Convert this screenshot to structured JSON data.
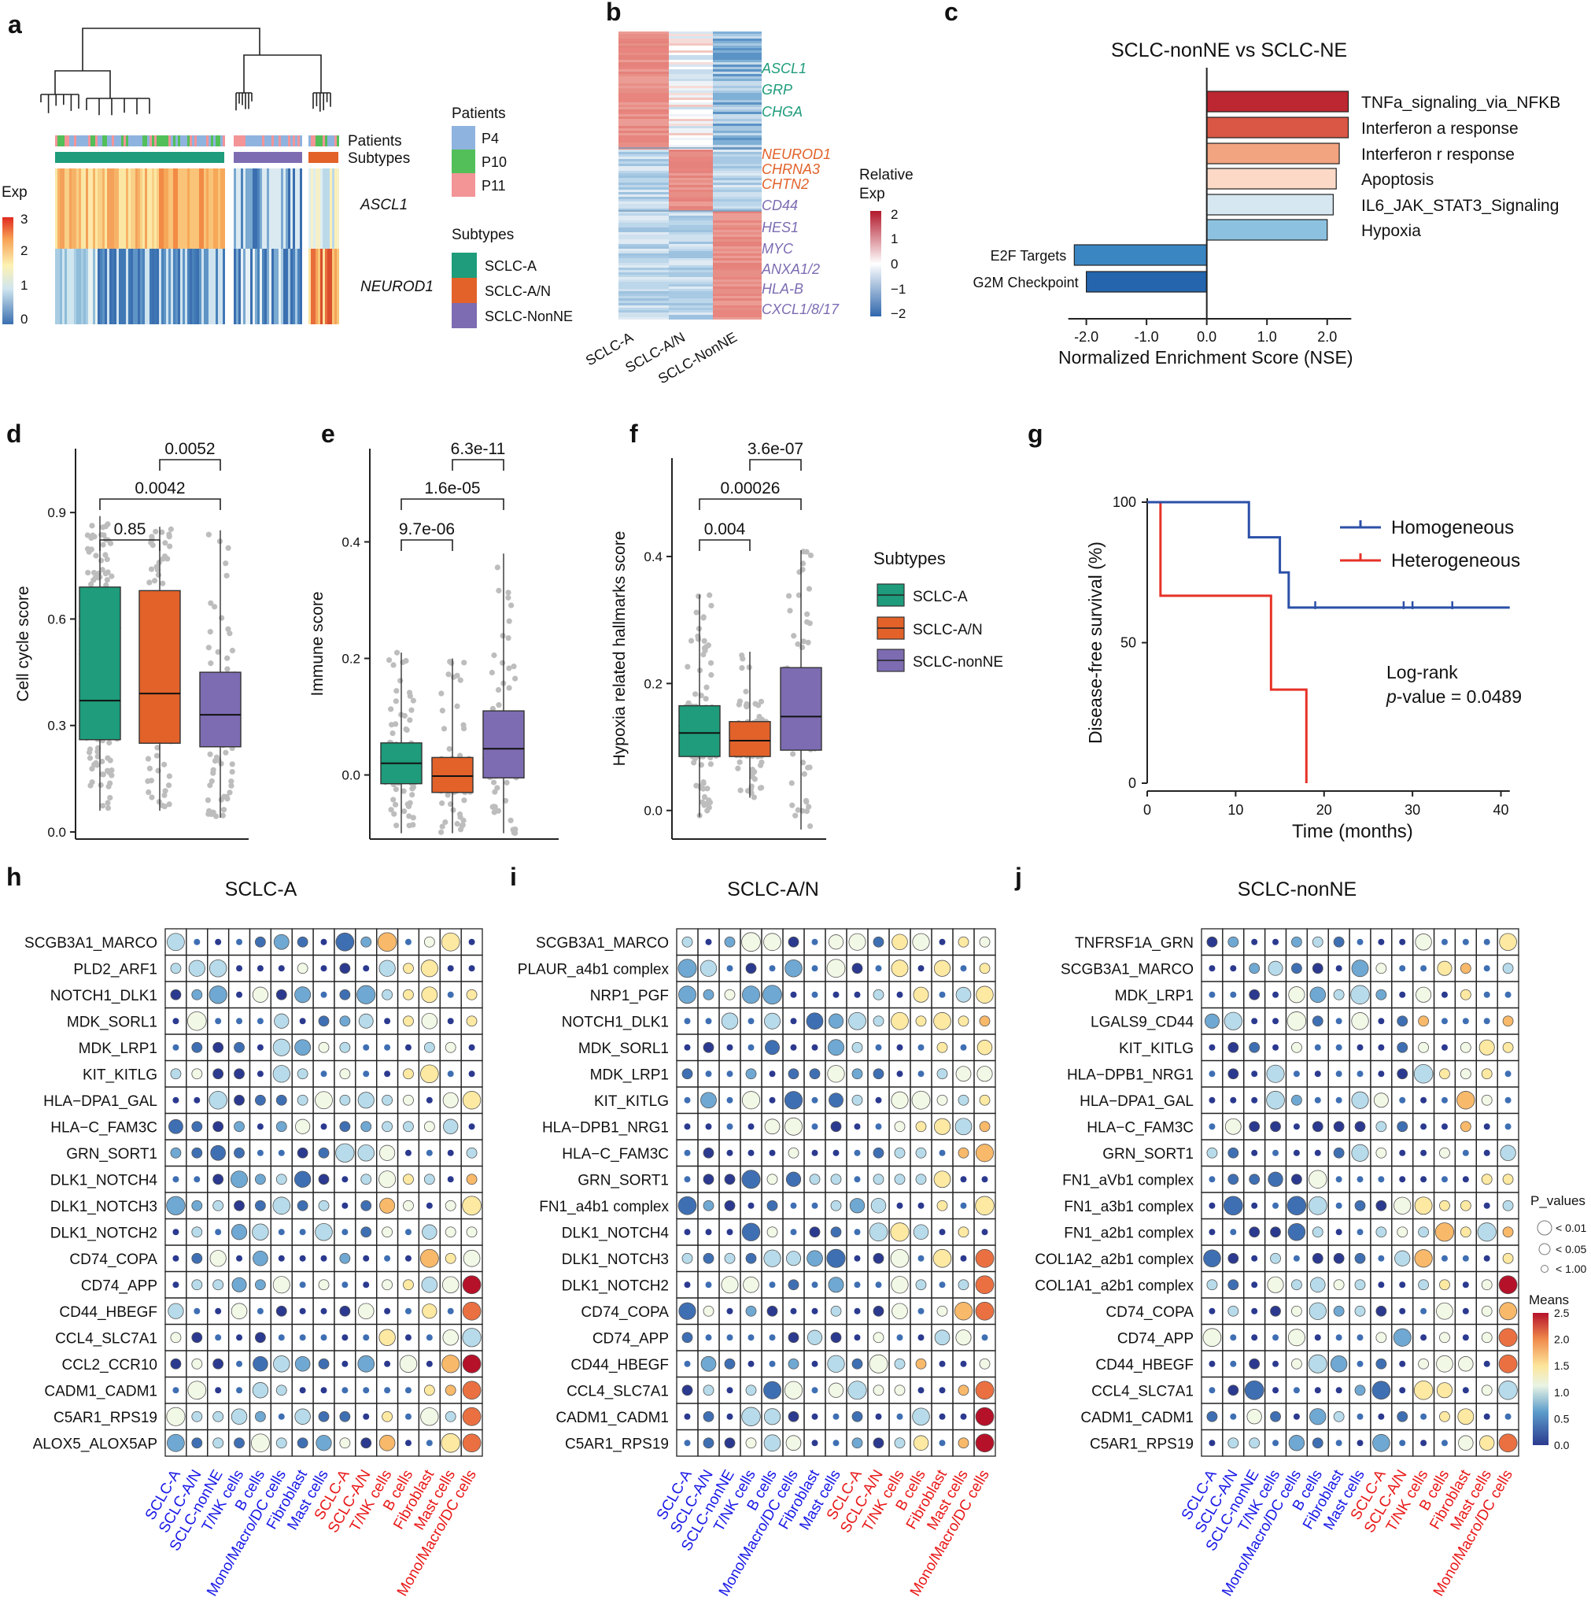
{
  "panel_labels": [
    "a",
    "b",
    "c",
    "d",
    "e",
    "f",
    "g",
    "h",
    "i",
    "j"
  ],
  "colors": {
    "SCLC-A": "#1e9c7b",
    "SCLC-A/N": "#e2622a",
    "SCLC-nonNE": "#7d6cb2",
    "P4": "#8fb3df",
    "P10": "#52bf58",
    "P11": "#f39497",
    "homogeneous": "#2c50a8",
    "heterogeneous": "#e63227"
  },
  "panel_a": {
    "legend_patients_title": "Patients",
    "patients": [
      "P4",
      "P10",
      "P11"
    ],
    "legend_subtypes_title": "Subtypes",
    "subtypes": [
      "SCLC-A",
      "SCLC-A/N",
      "SCLC-NonNE"
    ],
    "row_labels": [
      "Patients",
      "Subtypes"
    ],
    "genes": [
      "ASCL1",
      "NEUROD1"
    ],
    "scale_title": "Exp",
    "scale_ticks": [
      "3",
      "2",
      "1",
      "0"
    ]
  },
  "panel_b": {
    "columns": [
      "SCLC-A",
      "SCLC-A/N",
      "SCLC-NonNE"
    ],
    "genes_A": [
      "ASCL1",
      "GRP",
      "CHGA"
    ],
    "genes_AN": [
      "NEUROD1",
      "CHRNA3",
      "CHTN2"
    ],
    "genes_nonNE": [
      "CD44",
      "HES1",
      "MYC",
      "ANXA1/2",
      "HLA-B",
      "CXCL1/8/17"
    ],
    "scale_title_1": "Relative",
    "scale_title_2": "Exp",
    "scale_ticks": [
      "2",
      "1",
      "0",
      "−1",
      "−2"
    ]
  },
  "chart_data": [
    {
      "panel": "c",
      "type": "bar",
      "orientation": "horizontal",
      "title": "SCLC-nonNE vs SCLC-NE",
      "xlabel": "Normalized Enrichment Score (NSE)",
      "xlim": [
        -2.4,
        2.5
      ],
      "xticks": [
        "-2.0",
        "-1.0",
        "0.0",
        "1.0",
        "2.0"
      ],
      "categories": [
        "TNFa_signaling_via_NFKB",
        "Interferon a response",
        "Interferon r response",
        "Apoptosis",
        "IL6_JAK_STAT3_Signaling",
        "Hypoxia",
        "E2F Targets",
        "G2M Checkpoint"
      ],
      "values": [
        2.35,
        2.35,
        2.2,
        2.15,
        2.1,
        2.0,
        -2.2,
        -2.0
      ],
      "bar_colors": [
        "#bc2731",
        "#d95744",
        "#f2a380",
        "#fbd9c6",
        "#d7e7f1",
        "#8cc2e0",
        "#3a86c3",
        "#2465ad"
      ]
    },
    {
      "panel": "d",
      "type": "box",
      "ylabel": "Cell cycle score",
      "ylim": [
        -0.02,
        1.08
      ],
      "yticks": [
        "0.0",
        "0.3",
        "0.6",
        "0.9"
      ],
      "categories": [
        "SCLC-A",
        "SCLC-A/N",
        "SCLC-nonNE"
      ],
      "boxes": [
        {
          "q1": 0.26,
          "median": 0.37,
          "q3": 0.69,
          "lo": 0.06,
          "hi": 0.89
        },
        {
          "q1": 0.25,
          "median": 0.39,
          "q3": 0.68,
          "lo": 0.06,
          "hi": 0.86
        },
        {
          "q1": 0.24,
          "median": 0.33,
          "q3": 0.45,
          "lo": 0.04,
          "hi": 0.85
        }
      ],
      "comparisons": [
        {
          "a": 0,
          "b": 1,
          "p": "0.85"
        },
        {
          "a": 0,
          "b": 2,
          "p": "0.0042"
        },
        {
          "a": 1,
          "b": 2,
          "p": "0.0052"
        }
      ]
    },
    {
      "panel": "e",
      "type": "box",
      "ylabel": "Immune score",
      "ylim": [
        -0.11,
        0.56
      ],
      "yticks": [
        "0.0",
        "0.2",
        "0.4"
      ],
      "categories": [
        "SCLC-A",
        "SCLC-A/N",
        "SCLC-nonNE"
      ],
      "boxes": [
        {
          "q1": -0.015,
          "median": 0.02,
          "q3": 0.055,
          "lo": -0.1,
          "hi": 0.21
        },
        {
          "q1": -0.03,
          "median": -0.002,
          "q3": 0.03,
          "lo": -0.1,
          "hi": 0.2
        },
        {
          "q1": -0.005,
          "median": 0.045,
          "q3": 0.11,
          "lo": -0.1,
          "hi": 0.38
        }
      ],
      "comparisons": [
        {
          "a": 0,
          "b": 1,
          "p": "9.7e-06"
        },
        {
          "a": 0,
          "b": 2,
          "p": "1.6e-05"
        },
        {
          "a": 1,
          "b": 2,
          "p": "6.3e-11"
        }
      ]
    },
    {
      "panel": "f",
      "type": "box",
      "ylabel": "Hypoxia related hallmarks score",
      "ylim": [
        -0.045,
        0.555
      ],
      "yticks": [
        "0.0",
        "0.2",
        "0.4"
      ],
      "categories": [
        "SCLC-A",
        "SCLC-A/N",
        "SCLC-nonNE"
      ],
      "boxes": [
        {
          "q1": 0.085,
          "median": 0.122,
          "q3": 0.165,
          "lo": -0.01,
          "hi": 0.34
        },
        {
          "q1": 0.085,
          "median": 0.11,
          "q3": 0.14,
          "lo": 0.02,
          "hi": 0.25
        },
        {
          "q1": 0.095,
          "median": 0.148,
          "q3": 0.225,
          "lo": -0.03,
          "hi": 0.41
        }
      ],
      "comparisons": [
        {
          "a": 0,
          "b": 1,
          "p": "0.004"
        },
        {
          "a": 0,
          "b": 2,
          "p": "0.00026"
        },
        {
          "a": 1,
          "b": 2,
          "p": "3.6e-07"
        }
      ],
      "legend_title": "Subtypes",
      "legend": [
        "SCLC-A",
        "SCLC-A/N",
        "SCLC-nonNE"
      ]
    },
    {
      "panel": "g",
      "type": "line",
      "subtype": "kaplan-meier",
      "xlabel": "Time (months)",
      "ylabel": "Disease-free survival (%)",
      "xlim": [
        0,
        42
      ],
      "ylim": [
        0,
        100
      ],
      "xticks": [
        "0",
        "10",
        "20",
        "30",
        "40"
      ],
      "yticks": [
        "0",
        "50",
        "100"
      ],
      "series": [
        {
          "name": "Homogeneous",
          "steps": [
            [
              0,
              100
            ],
            [
              11.5,
              100
            ],
            [
              11.5,
              87.5
            ],
            [
              15,
              87.5
            ],
            [
              15,
              75
            ],
            [
              16,
              75
            ],
            [
              16,
              62.5
            ],
            [
              41,
              62.5
            ]
          ],
          "censored": [
            [
              19,
              62.5
            ],
            [
              29,
              62.5
            ],
            [
              30,
              62.5
            ],
            [
              34.5,
              62.5
            ]
          ]
        },
        {
          "name": "Heterogeneous",
          "steps": [
            [
              0,
              100
            ],
            [
              1.5,
              100
            ],
            [
              1.5,
              66.7
            ],
            [
              14,
              66.7
            ],
            [
              14,
              33.3
            ],
            [
              18,
              33.3
            ],
            [
              18,
              0
            ]
          ],
          "censored": []
        }
      ],
      "annotation_line1": "Log-rank",
      "annotation_p_prefix": "p",
      "annotation_p_value": "-value = 0.0489"
    },
    {
      "panel": "h",
      "type": "scatter",
      "subtype": "dot-matrix",
      "title": "SCLC-A",
      "columns": [
        "SCLC-A",
        "SCLC-A/N",
        "SCLC-nonNE",
        "T/NK cells",
        "B cells",
        "Mono/Macro/DC cells",
        "Fibroblast",
        "Mast cells",
        "SCLC-A",
        "SCLC-A/N",
        "T/NK cells",
        "B cells",
        "Fibroblast",
        "Mast cells",
        "Mono/Macro/DC cells"
      ],
      "rows": [
        "SCGB3A1_MARCO",
        "PLD2_ARF1",
        "NOTCH1_DLK1",
        "MDK_SORL1",
        "MDK_LRP1",
        "KIT_KITLG",
        "HLA−DPA1_GAL",
        "HLA−C_FAM3C",
        "GRN_SORT1",
        "DLK1_NOTCH4",
        "DLK1_NOTCH3",
        "DLK1_NOTCH2",
        "CD74_COPA",
        "CD74_APP",
        "CD44_HBEGF",
        "CCL4_SLC7A1",
        "CCL2_CCR10",
        "CADM1_CADM1",
        "C5AR1_RPS19",
        "ALOX5_ALOX5AP"
      ]
    },
    {
      "panel": "i",
      "type": "scatter",
      "subtype": "dot-matrix",
      "title": "SCLC-A/N",
      "columns": [
        "SCLC-A",
        "SCLC-A/N",
        "SCLC-nonNE",
        "T/NK cells",
        "B cells",
        "Mono/Macro/DC cells",
        "Fibroblast",
        "Mast cells",
        "SCLC-A",
        "SCLC-A/N",
        "T/NK cells",
        "B cells",
        "Fibroblast",
        "Mast cells",
        "Mono/Macro/DC cells"
      ],
      "rows": [
        "SCGB3A1_MARCO",
        "PLAUR_a4b1 complex",
        "NRP1_PGF",
        "NOTCH1_DLK1",
        "MDK_SORL1",
        "MDK_LRP1",
        "KIT_KITLG",
        "HLA−DPB1_NRG1",
        "HLA−C_FAM3C",
        "GRN_SORT1",
        "FN1_a4b1 complex",
        "DLK1_NOTCH4",
        "DLK1_NOTCH3",
        "DLK1_NOTCH2",
        "CD74_COPA",
        "CD74_APP",
        "CD44_HBEGF",
        "CCL4_SLC7A1",
        "CADM1_CADM1",
        "C5AR1_RPS19"
      ]
    },
    {
      "panel": "j",
      "type": "scatter",
      "subtype": "dot-matrix",
      "title": "SCLC-nonNE",
      "columns": [
        "SCLC-A",
        "SCLC-A/N",
        "SCLC-nonNE",
        "T/NK cells",
        "Mono/Macro/DC cells",
        "B cells",
        "Fibroblast",
        "Mast cells",
        "SCLC-A",
        "SCLC-A/N",
        "T/NK cells",
        "B cells",
        "Fibroblast",
        "Mast cells",
        "Mono/Macro/DC cells"
      ],
      "rows": [
        "TNFRSF1A_GRN",
        "SCGB3A1_MARCO",
        "MDK_LRP1",
        "LGALS9_CD44",
        "KIT_KITLG",
        "HLA−DPB1_NRG1",
        "HLA−DPA1_GAL",
        "HLA−C_FAM3C",
        "GRN_SORT1",
        "FN1_aVb1 complex",
        "FN1_a3b1 complex",
        "FN1_a2b1 complex",
        "COL1A2_a2b1 complex",
        "COL1A1_a2b1 complex",
        "CD74_COPA",
        "CD74_APP",
        "CD44_HBEGF",
        "CCL4_SLC7A1",
        "CADM1_CADM1",
        "C5AR1_RPS19"
      ],
      "legend_pvalues_title": "P_values",
      "legend_pvalues": [
        "< 0.01",
        "< 0.05",
        "< 1.00"
      ],
      "legend_means_title": "Means",
      "legend_means_ticks": [
        "2.5",
        "2.0",
        "1.5",
        "1.0",
        "0.5",
        "0.0"
      ]
    }
  ]
}
